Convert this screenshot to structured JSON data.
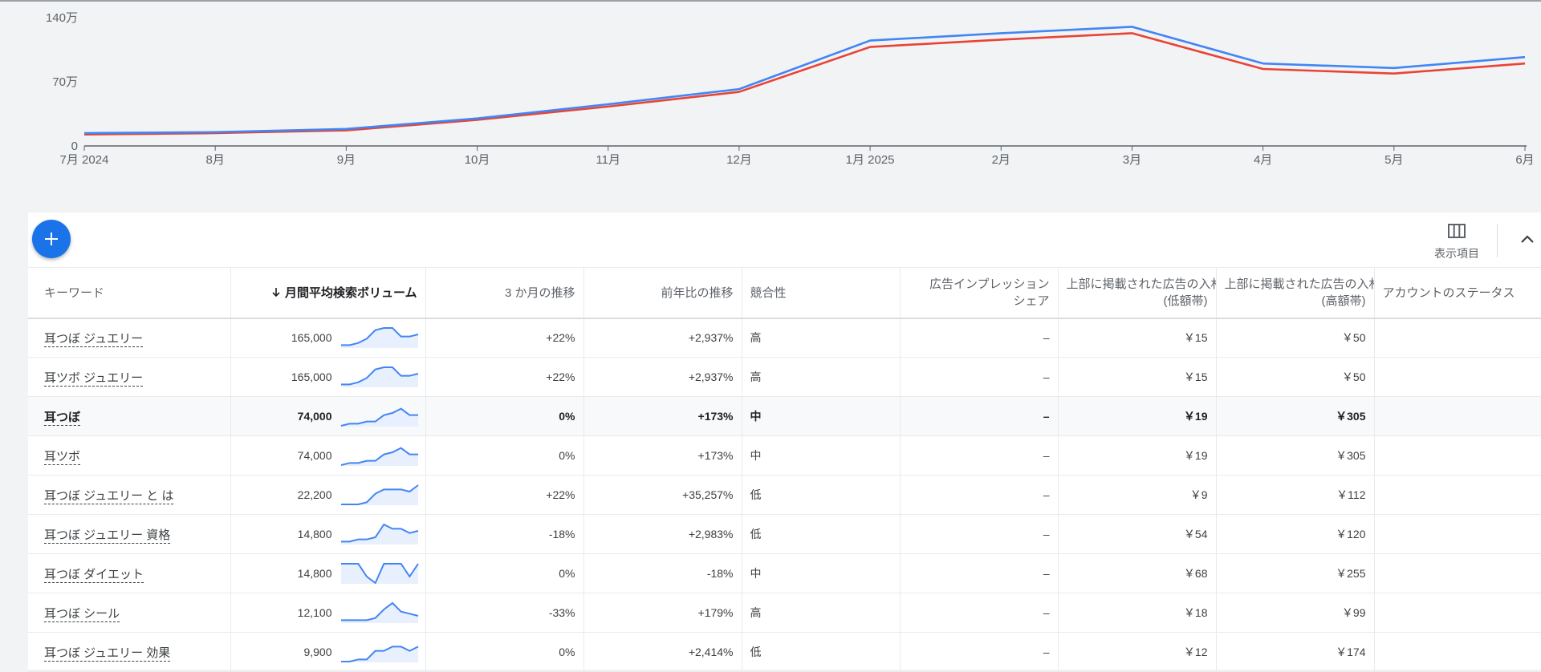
{
  "chart_data": {
    "type": "line",
    "x": [
      "7月 2024",
      "8月",
      "9月",
      "10月",
      "11月",
      "12月",
      "1月 2025",
      "2月",
      "3月",
      "4月",
      "5月",
      "6月"
    ],
    "yticks": [
      "140万",
      "70万",
      "0"
    ],
    "ylim": [
      0,
      1400000
    ],
    "series": [
      {
        "color": "#4285f4",
        "values": [
          140000,
          150000,
          185000,
          300000,
          455000,
          620000,
          1150000,
          1230000,
          1300000,
          900000,
          850000,
          970000
        ]
      },
      {
        "color": "#ea4335",
        "values": [
          125000,
          140000,
          170000,
          285000,
          430000,
          590000,
          1080000,
          1160000,
          1230000,
          840000,
          790000,
          900000
        ]
      }
    ],
    "grid": false,
    "legend": "none"
  },
  "toolbar": {
    "add_icon": "plus-icon",
    "columns_icon": "columns-icon",
    "columns_label": "表示項目",
    "collapse_icon": "chevron-up-icon"
  },
  "table": {
    "columns": {
      "keyword": "キーワード",
      "volume": "月間平均検索ボリューム",
      "three_month": "3 か月の推移",
      "yoy": "前年比の推移",
      "competition": "競合性",
      "impression_l1": "広告インプレッション",
      "impression_l2": "シェア",
      "bid_low_l1": "上部に掲載された広告の入札単価",
      "bid_low_l2": "(低額帯)",
      "bid_high_l1": "上部に掲載された広告の入札単価",
      "bid_high_l2": "(高額帯)",
      "status": "アカウントのステータス"
    },
    "rows": [
      {
        "keyword": "耳つぼ ジュエリー",
        "volume": "165,000",
        "three_month": "+22%",
        "yoy": "+2,937%",
        "competition": "高",
        "impression": "–",
        "bid_low": "￥15",
        "bid_high": "￥50",
        "status": "",
        "trend": [
          2,
          2,
          3,
          5,
          9,
          10,
          10,
          6,
          6,
          7
        ]
      },
      {
        "keyword": "耳ツボ ジュエリー",
        "volume": "165,000",
        "three_month": "+22%",
        "yoy": "+2,937%",
        "competition": "高",
        "impression": "–",
        "bid_low": "￥15",
        "bid_high": "￥50",
        "status": "",
        "trend": [
          2,
          2,
          3,
          5,
          9,
          10,
          10,
          6,
          6,
          7
        ]
      },
      {
        "keyword": "耳つぼ",
        "volume": "74,000",
        "three_month": "0%",
        "yoy": "+173%",
        "competition": "中",
        "impression": "–",
        "bid_low": "￥19",
        "bid_high": "￥305",
        "status": "",
        "trend": [
          1,
          2,
          2,
          3,
          3,
          6,
          7,
          9,
          6,
          6
        ]
      },
      {
        "keyword": "耳ツボ",
        "volume": "74,000",
        "three_month": "0%",
        "yoy": "+173%",
        "competition": "中",
        "impression": "–",
        "bid_low": "￥19",
        "bid_high": "￥305",
        "status": "",
        "trend": [
          1,
          2,
          2,
          3,
          3,
          6,
          7,
          9,
          6,
          6
        ]
      },
      {
        "keyword": "耳つぼ ジュエリー と は",
        "volume": "22,200",
        "three_month": "+22%",
        "yoy": "+35,257%",
        "competition": "低",
        "impression": "–",
        "bid_low": "￥9",
        "bid_high": "￥112",
        "status": "",
        "trend": [
          1,
          1,
          1,
          2,
          6,
          8,
          8,
          8,
          7,
          10
        ]
      },
      {
        "keyword": "耳つぼ ジュエリー 資格",
        "volume": "14,800",
        "three_month": "-18%",
        "yoy": "+2,983%",
        "competition": "低",
        "impression": "–",
        "bid_low": "￥54",
        "bid_high": "￥120",
        "status": "",
        "trend": [
          2,
          2,
          3,
          3,
          4,
          10,
          8,
          8,
          6,
          7
        ]
      },
      {
        "keyword": "耳つぼ ダイエット",
        "volume": "14,800",
        "three_month": "0%",
        "yoy": "-18%",
        "competition": "中",
        "impression": "–",
        "bid_low": "￥68",
        "bid_high": "￥255",
        "status": "",
        "trend": [
          10,
          10,
          10,
          4,
          1,
          10,
          10,
          10,
          4,
          10
        ]
      },
      {
        "keyword": "耳つぼ シール",
        "volume": "12,100",
        "three_month": "-33%",
        "yoy": "+179%",
        "competition": "高",
        "impression": "–",
        "bid_low": "￥18",
        "bid_high": "￥99",
        "status": "",
        "trend": [
          2,
          2,
          2,
          2,
          3,
          7,
          10,
          6,
          5,
          4
        ]
      },
      {
        "keyword": "耳つぼ ジュエリー 効果",
        "volume": "9,900",
        "three_month": "0%",
        "yoy": "+2,414%",
        "competition": "低",
        "impression": "–",
        "bid_low": "￥12",
        "bid_high": "￥174",
        "status": "",
        "trend": [
          1,
          1,
          2,
          2,
          6,
          6,
          8,
          8,
          6,
          8
        ]
      }
    ]
  }
}
